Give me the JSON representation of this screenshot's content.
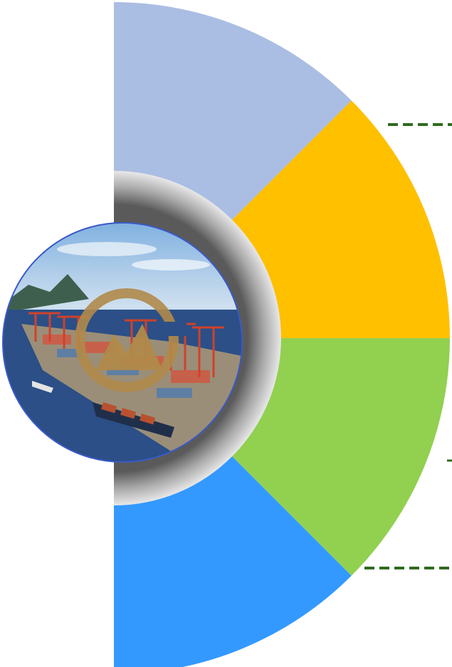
{
  "diagram": {
    "type": "half-donut-segments",
    "segments": [
      {
        "id": "segment-1",
        "color": "#aabde3"
      },
      {
        "id": "segment-2",
        "color": "#ffc000"
      },
      {
        "id": "segment-3",
        "color": "#92d050"
      },
      {
        "id": "segment-4",
        "color": "#3399ff"
      }
    ],
    "ring_color": "#9a9a9a",
    "connector_color": "#2f6b1f",
    "center_image": {
      "description_icon": "port-photo-with-gold-logo-icon",
      "sky_color": "#9fc4e6",
      "sea_color": "#2b4f86",
      "crane_color": "#d0412b",
      "logo_color": "#b08a4a",
      "border_color": "#3a59c9"
    }
  }
}
